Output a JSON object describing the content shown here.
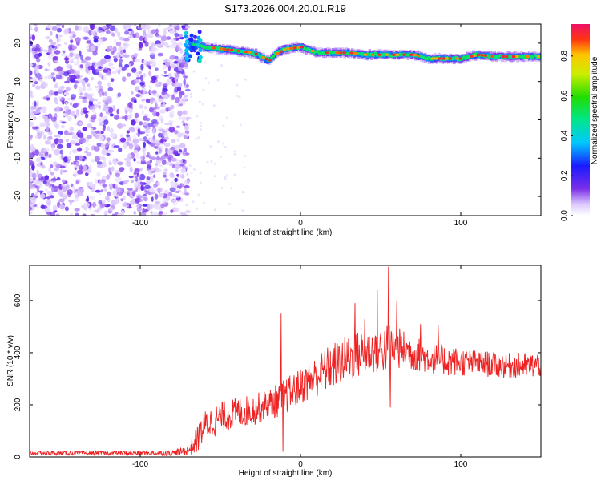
{
  "title": "S173.2026.004.20.01.R19",
  "chart_data": [
    {
      "type": "heatmap",
      "xlabel": "Height of straight line (km)",
      "ylabel": "Frequency (Hz)",
      "xlim": [
        -169,
        150
      ],
      "ylim": [
        -25,
        25
      ],
      "xticks": [
        -100,
        0,
        100
      ],
      "yticks": [
        -20,
        -10,
        0,
        10,
        20
      ],
      "colorbar": {
        "label": "Normalized spectral amplitude",
        "range": [
          0,
          0.96
        ],
        "ticks": [
          0,
          0.2,
          0.4,
          0.6,
          0.8
        ]
      },
      "noise_region_x": [
        -169,
        -70
      ],
      "ridge": {
        "x": [
          -70,
          -65,
          -60,
          -50,
          -40,
          -30,
          -25,
          -20,
          -15,
          -10,
          0,
          10,
          20,
          30,
          40,
          50,
          60,
          70,
          80,
          90,
          100,
          110,
          120,
          130,
          140,
          150
        ],
        "freq": [
          20.5,
          19.5,
          19.0,
          18.5,
          18.0,
          17.5,
          16.5,
          15.5,
          17.5,
          18.5,
          19.0,
          17.5,
          17.5,
          17.5,
          17.0,
          17.0,
          17.0,
          17.0,
          16.0,
          16.0,
          16.0,
          17.0,
          16.5,
          16.5,
          16.5,
          16.5
        ]
      }
    },
    {
      "type": "line",
      "xlabel": "Height of straight line (km)",
      "ylabel": "SNR (10 * v/v)",
      "xlim": [
        -169,
        150
      ],
      "ylim": [
        0,
        735
      ],
      "xticks": [
        -100,
        0,
        100
      ],
      "yticks": [
        0,
        200,
        400,
        600
      ],
      "series": [
        {
          "color": "#ee2222",
          "envelope_x": [
            -169,
            -120,
            -80,
            -70,
            -65,
            -60,
            -50,
            -40,
            -30,
            -20,
            -10,
            0,
            10,
            20,
            30,
            40,
            50,
            55,
            60,
            70,
            80,
            90,
            100,
            110,
            120,
            130,
            140,
            150
          ],
          "envelope_mean": [
            15,
            15,
            15,
            25,
            60,
            120,
            150,
            170,
            180,
            200,
            230,
            270,
            310,
            350,
            380,
            400,
            410,
            420,
            420,
            400,
            380,
            370,
            365,
            360,
            355,
            350,
            350,
            355
          ],
          "envelope_spread": [
            8,
            8,
            10,
            20,
            50,
            60,
            60,
            60,
            60,
            60,
            70,
            70,
            80,
            90,
            90,
            90,
            90,
            100,
            80,
            70,
            60,
            60,
            55,
            50,
            50,
            50,
            50,
            50
          ],
          "spikes": [
            [
              -12,
              550
            ],
            [
              -11,
              20
            ],
            [
              34,
              590
            ],
            [
              40,
              530
            ],
            [
              48,
              640
            ],
            [
              55,
              730
            ],
            [
              56,
              190
            ],
            [
              60,
              600
            ],
            [
              75,
              510
            ],
            [
              86,
              505
            ]
          ]
        }
      ]
    }
  ]
}
